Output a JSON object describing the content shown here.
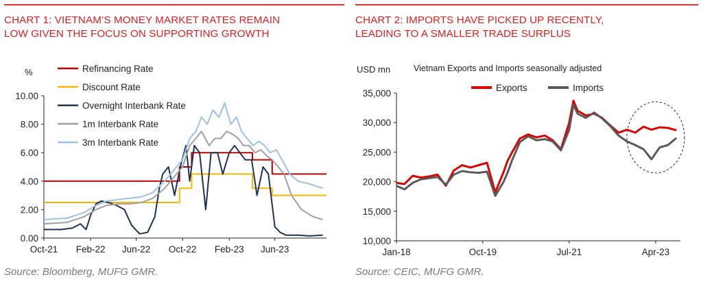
{
  "chart1": {
    "title_line1": "CHART 1: VIETNAM’S MONEY MARKET RATES REMAIN",
    "title_line2": "LOW GIVEN THE FOCUS ON SUPPORTING GROWTH",
    "source": "Source: Bloomberg, MUFG GMR.",
    "unit_label": "%"
  },
  "chart2": {
    "title_line1": "CHART 2: IMPORTS HAVE PICKED UP RECENTLY,",
    "title_line2": "LEADING TO A SMALLER TRADE SURPLUS",
    "source": "Source: CEIC, MUFG GMR.",
    "unit_label": "USD mn",
    "subtitle": "Vietnam Exports and Imports seasonally adjusted"
  },
  "chart_data": [
    {
      "type": "line",
      "title": "CHART 1: VIETNAM’S MONEY MARKET RATES REMAIN LOW GIVEN THE FOCUS ON SUPPORTING GROWTH",
      "ylabel": "%",
      "xlabel": "",
      "ylim": [
        0,
        10
      ],
      "yticks": [
        "0.00",
        "2.00",
        "4.00",
        "6.00",
        "8.00",
        "10.00"
      ],
      "xlim": [
        "2021-10-01",
        "2023-10-15"
      ],
      "xticks": [
        {
          "label": "Oct-21",
          "date": "2021-10-01"
        },
        {
          "label": "Feb-22",
          "date": "2022-02-01"
        },
        {
          "label": "Jun-22",
          "date": "2022-06-01"
        },
        {
          "label": "Oct-22",
          "date": "2022-10-01"
        },
        {
          "label": "Feb-23",
          "date": "2023-02-01"
        },
        {
          "label": "Jun-23",
          "date": "2023-06-01"
        }
      ],
      "grid": false,
      "legend_position": "top-left",
      "series": [
        {
          "name": "Refinancing Rate",
          "color": "#c00000",
          "step": true,
          "x": [
            "2021-10-01",
            "2022-09-23",
            "2022-10-25",
            "2023-03-15",
            "2023-04-03",
            "2023-05-25",
            "2023-10-15"
          ],
          "y": [
            4.0,
            5.0,
            6.0,
            6.0,
            5.5,
            4.5,
            4.5
          ]
        },
        {
          "name": "Discount Rate",
          "color": "#f5b800",
          "step": true,
          "x": [
            "2021-10-01",
            "2022-07-01",
            "2022-09-23",
            "2022-10-25",
            "2023-03-15",
            "2023-04-03",
            "2023-05-25",
            "2023-06-19",
            "2023-10-15"
          ],
          "y": [
            2.5,
            2.5,
            3.5,
            4.5,
            4.5,
            3.5,
            3.0,
            3.0,
            3.0
          ]
        },
        {
          "name": "Overnight Interbank Rate",
          "color": "#1f3050",
          "x": [
            "2021-10-01",
            "2021-11-15",
            "2021-12-15",
            "2022-01-05",
            "2022-01-20",
            "2022-02-01",
            "2022-02-15",
            "2022-03-01",
            "2022-03-20",
            "2022-04-10",
            "2022-05-01",
            "2022-05-20",
            "2022-06-10",
            "2022-07-01",
            "2022-07-20",
            "2022-08-01",
            "2022-08-10",
            "2022-08-25",
            "2022-09-10",
            "2022-09-25",
            "2022-10-10",
            "2022-10-20",
            "2022-11-01",
            "2022-11-15",
            "2022-12-01",
            "2022-12-15",
            "2023-01-01",
            "2023-01-15",
            "2023-02-01",
            "2023-02-15",
            "2023-03-01",
            "2023-03-15",
            "2023-04-01",
            "2023-04-15",
            "2023-05-01",
            "2023-05-15",
            "2023-06-01",
            "2023-06-15",
            "2023-07-01",
            "2023-08-01",
            "2023-09-01",
            "2023-10-05"
          ],
          "y": [
            0.6,
            0.6,
            0.7,
            1.0,
            0.6,
            1.6,
            2.4,
            2.6,
            2.5,
            2.3,
            2.0,
            0.9,
            0.3,
            0.4,
            1.5,
            3.5,
            4.5,
            5.0,
            3.0,
            5.0,
            6.5,
            4.0,
            6.5,
            6.0,
            2.0,
            6.0,
            6.0,
            4.5,
            6.0,
            6.5,
            6.0,
            5.5,
            5.5,
            3.0,
            5.0,
            4.5,
            0.8,
            0.4,
            0.2,
            0.2,
            0.15,
            0.2
          ]
        },
        {
          "name": "1m Interbank Rate",
          "color": "#a0a0a0",
          "x": [
            "2021-10-01",
            "2021-12-01",
            "2022-01-15",
            "2022-02-15",
            "2022-03-15",
            "2022-04-15",
            "2022-05-15",
            "2022-06-15",
            "2022-07-15",
            "2022-08-15",
            "2022-09-15",
            "2022-10-01",
            "2022-10-20",
            "2022-11-05",
            "2022-11-20",
            "2022-12-10",
            "2022-12-25",
            "2023-01-10",
            "2023-01-25",
            "2023-02-10",
            "2023-02-25",
            "2023-03-10",
            "2023-03-25",
            "2023-04-10",
            "2023-04-25",
            "2023-05-10",
            "2023-05-25",
            "2023-06-10",
            "2023-06-25",
            "2023-07-15",
            "2023-08-10",
            "2023-09-10",
            "2023-10-05"
          ],
          "y": [
            1.0,
            1.1,
            1.5,
            2.0,
            2.3,
            2.4,
            2.4,
            2.5,
            2.8,
            3.5,
            4.5,
            5.0,
            6.5,
            7.0,
            7.5,
            6.5,
            7.0,
            7.0,
            7.5,
            7.3,
            7.0,
            6.5,
            6.5,
            6.0,
            6.2,
            5.8,
            5.5,
            5.0,
            4.5,
            3.0,
            2.0,
            1.5,
            1.3
          ]
        },
        {
          "name": "3m Interbank Rate",
          "color": "#9bc2e6",
          "x": [
            "2021-10-01",
            "2021-12-01",
            "2022-01-15",
            "2022-02-15",
            "2022-03-15",
            "2022-04-15",
            "2022-05-15",
            "2022-06-15",
            "2022-07-15",
            "2022-08-15",
            "2022-09-15",
            "2022-10-01",
            "2022-10-20",
            "2022-11-05",
            "2022-11-20",
            "2022-12-05",
            "2022-12-20",
            "2023-01-05",
            "2023-01-20",
            "2023-02-05",
            "2023-02-20",
            "2023-03-05",
            "2023-03-20",
            "2023-04-05",
            "2023-04-20",
            "2023-05-05",
            "2023-05-20",
            "2023-06-05",
            "2023-06-20",
            "2023-07-10",
            "2023-08-01",
            "2023-09-01",
            "2023-10-05"
          ],
          "y": [
            1.3,
            1.4,
            1.8,
            2.3,
            2.6,
            2.7,
            2.8,
            2.9,
            3.2,
            4.0,
            5.0,
            5.5,
            7.0,
            7.5,
            8.5,
            8.0,
            9.0,
            8.5,
            9.5,
            8.0,
            8.5,
            7.5,
            7.0,
            6.5,
            6.8,
            6.5,
            6.0,
            6.2,
            5.5,
            4.5,
            4.0,
            3.8,
            3.5
          ]
        }
      ]
    },
    {
      "type": "line",
      "title": "CHART 2: IMPORTS HAVE PICKED UP RECENTLY, LEADING TO A SMALLER TRADE SURPLUS",
      "subtitle": "Vietnam Exports and Imports seasonally adjusted",
      "ylabel": "USD mn",
      "xlabel": "",
      "ylim": [
        10000,
        35000
      ],
      "yticks": [
        "10,000",
        "15,000",
        "20,000",
        "25,000",
        "30,000",
        "35,000"
      ],
      "xlim": [
        "2018-01-01",
        "2023-10-01"
      ],
      "xticks": [
        {
          "label": "Jan-18",
          "date": "2018-01-01"
        },
        {
          "label": "Oct-19",
          "date": "2019-10-01"
        },
        {
          "label": "Jul-21",
          "date": "2021-07-01"
        },
        {
          "label": "Apr-23",
          "date": "2023-04-01"
        }
      ],
      "grid": false,
      "legend_position": "top-left",
      "annotation": "dashed ellipse around the most recent months",
      "series": [
        {
          "name": "Exports",
          "color": "#e00000",
          "x": [
            "2018-01",
            "2018-03",
            "2018-05",
            "2018-07",
            "2018-09",
            "2018-11",
            "2019-01",
            "2019-03",
            "2019-05",
            "2019-07",
            "2019-09",
            "2019-11",
            "2020-01",
            "2020-03",
            "2020-04",
            "2020-05",
            "2020-07",
            "2020-09",
            "2020-11",
            "2021-01",
            "2021-03",
            "2021-05",
            "2021-07",
            "2021-08",
            "2021-09",
            "2021-11",
            "2022-01",
            "2022-03",
            "2022-05",
            "2022-07",
            "2022-09",
            "2022-11",
            "2023-01",
            "2023-03",
            "2023-05",
            "2023-07",
            "2023-09"
          ],
          "y": [
            19800,
            19600,
            21000,
            20700,
            20900,
            21200,
            19300,
            21900,
            22800,
            22400,
            22800,
            23200,
            18200,
            21500,
            23500,
            24800,
            27300,
            28000,
            27500,
            27800,
            27000,
            25500,
            30000,
            33700,
            32000,
            31200,
            31500,
            30800,
            29500,
            28300,
            28800,
            28300,
            29300,
            28800,
            29200,
            29100,
            28700
          ]
        },
        {
          "name": "Imports",
          "color": "#595959",
          "x": [
            "2018-01",
            "2018-03",
            "2018-05",
            "2018-07",
            "2018-09",
            "2018-11",
            "2019-01",
            "2019-03",
            "2019-05",
            "2019-07",
            "2019-09",
            "2019-11",
            "2020-01",
            "2020-03",
            "2020-04",
            "2020-05",
            "2020-07",
            "2020-09",
            "2020-11",
            "2021-01",
            "2021-03",
            "2021-05",
            "2021-07",
            "2021-08",
            "2021-09",
            "2021-11",
            "2022-01",
            "2022-03",
            "2022-05",
            "2022-07",
            "2022-09",
            "2022-11",
            "2023-01",
            "2023-03",
            "2023-05",
            "2023-07",
            "2023-09"
          ],
          "y": [
            19300,
            18700,
            19800,
            20400,
            20600,
            20800,
            19500,
            21200,
            21800,
            21600,
            21500,
            21700,
            17600,
            19900,
            21500,
            23400,
            26700,
            27700,
            27000,
            27200,
            26800,
            25300,
            28800,
            33000,
            31500,
            30800,
            31700,
            30700,
            29400,
            27800,
            26800,
            26200,
            25500,
            23800,
            25800,
            26200,
            27400
          ]
        }
      ]
    }
  ]
}
